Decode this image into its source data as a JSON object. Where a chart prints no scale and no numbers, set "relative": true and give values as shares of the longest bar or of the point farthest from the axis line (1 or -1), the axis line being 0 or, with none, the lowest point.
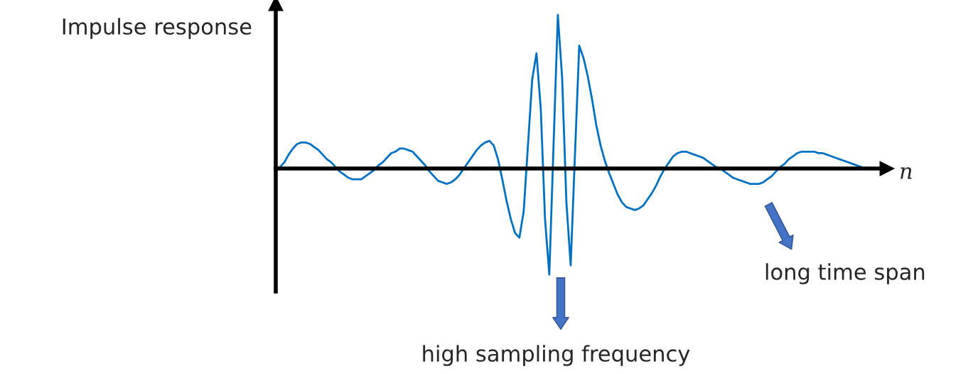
{
  "chart_data": {
    "type": "line",
    "relative": true,
    "ylabel": "Impulse response",
    "xlabel": "n",
    "tick_labels": false,
    "categories": [
      null,
      null,
      null,
      null,
      null,
      null,
      null,
      null,
      null,
      null,
      null,
      null,
      null,
      null,
      null,
      null,
      null,
      null,
      null,
      null,
      null,
      null,
      null,
      null,
      null,
      null,
      null,
      null,
      null,
      null,
      null,
      null,
      null,
      null,
      null,
      null,
      null,
      null,
      null,
      null,
      null,
      null,
      null,
      null,
      null,
      null,
      null,
      null,
      null,
      null,
      null,
      null,
      null,
      null,
      null,
      null,
      null,
      null,
      null,
      null,
      null,
      null,
      null,
      null,
      null,
      null,
      null,
      null,
      null,
      null,
      null,
      null,
      null,
      null,
      null,
      null,
      null,
      null,
      null,
      null,
      null,
      null,
      null,
      null,
      null,
      null,
      null,
      null,
      null,
      null,
      null,
      null,
      null,
      null,
      null,
      null,
      null,
      null,
      null,
      null,
      null,
      null,
      null,
      null,
      null,
      null,
      null,
      null,
      null,
      null,
      null,
      null,
      null,
      null,
      null,
      null,
      null,
      null,
      null,
      null,
      null,
      null,
      null,
      null,
      null,
      null,
      null,
      null,
      null,
      null,
      null,
      null,
      null,
      null,
      null,
      null,
      null,
      null
    ],
    "series": [
      {
        "color": "#0070c0",
        "values": [
          0,
          0.01,
          0.04,
          0.09,
          0.13,
          0.16,
          0.17,
          0.17,
          0.16,
          0.14,
          0.12,
          0.09,
          0.06,
          0.04,
          0.01,
          -0.02,
          -0.04,
          -0.06,
          -0.07,
          -0.07,
          -0.07,
          -0.05,
          -0.03,
          -0.01,
          0.02,
          0.04,
          0.07,
          0.1,
          0.11,
          0.13,
          0.13,
          0.12,
          0.11,
          0.08,
          0.05,
          0.02,
          -0.02,
          -0.05,
          -0.08,
          -0.09,
          -0.1,
          -0.09,
          -0.07,
          -0.04,
          0,
          0.04,
          0.08,
          0.12,
          0.15,
          0.17,
          0.18,
          0.15,
          0.06,
          -0.07,
          -0.21,
          -0.33,
          -0.42,
          -0.45,
          -0.28,
          0.15,
          0.58,
          0.75,
          0.39,
          -0.33,
          -0.69,
          0.16,
          1,
          0.59,
          -0.22,
          -0.63,
          0.09,
          0.8,
          0.72,
          0.6,
          0.45,
          0.28,
          0.15,
          0.05,
          -0.03,
          -0.1,
          -0.17,
          -0.22,
          -0.25,
          -0.26,
          -0.27,
          -0.26,
          -0.24,
          -0.2,
          -0.16,
          -0.11,
          -0.05,
          0,
          0.04,
          0.08,
          0.1,
          0.11,
          0.11,
          0.1,
          0.09,
          0.08,
          0.07,
          0.05,
          0.03,
          0.01,
          0,
          -0.02,
          -0.04,
          -0.06,
          -0.07,
          -0.08,
          -0.09,
          -0.1,
          -0.1,
          -0.1,
          -0.09,
          -0.07,
          -0.05,
          -0.02,
          0.01,
          0.03,
          0.06,
          0.08,
          0.1,
          0.11,
          0.11,
          0.11,
          0.11,
          0.1,
          0.1,
          0.09,
          0.08,
          0.07,
          0.06,
          0.05,
          0.04,
          0.03,
          0.02,
          0.01
        ]
      }
    ],
    "annotations": [
      "high sampling frequency",
      "long time span"
    ]
  }
}
